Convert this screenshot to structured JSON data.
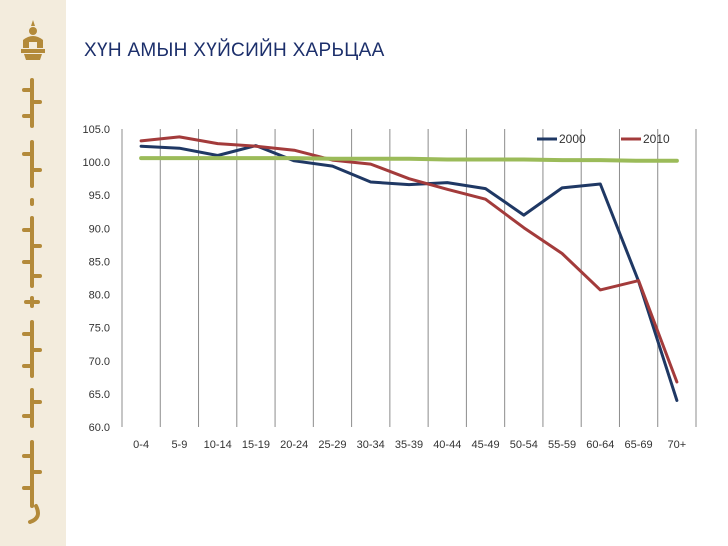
{
  "page": {
    "title": "ХҮН АМЫН ХҮЙСИЙН ХАРЬЦАА",
    "emblem_icon": "mongolia-emblem-icon",
    "sidebar_decoration": "mongolian-script-decoration",
    "colors": {
      "sidebar": "#f3ecdd",
      "gold": "#b38a3a",
      "title": "#1c2f6b"
    }
  },
  "chart_data": {
    "type": "line",
    "title": "",
    "xlabel": "",
    "ylabel": "",
    "ylim": [
      60.0,
      105.0
    ],
    "yticks": [
      "60.0",
      "65.0",
      "70.0",
      "75.0",
      "80.0",
      "85.0",
      "90.0",
      "95.0",
      "100.0",
      "105.0"
    ],
    "categories": [
      "0-4",
      "5-9",
      "10-14",
      "15-19",
      "20-24",
      "25-29",
      "30-34",
      "35-39",
      "40-44",
      "45-49",
      "50-54",
      "55-59",
      "60-64",
      "65-69",
      "70+"
    ],
    "grid": "vertical",
    "legend_position": "top-right",
    "series": [
      {
        "name": "2000",
        "color": "#1f3864",
        "values": [
          102.4,
          102.1,
          101.0,
          102.5,
          100.2,
          99.4,
          97.0,
          96.6,
          96.9,
          96.0,
          92.0,
          96.1,
          96.7,
          82.0,
          64.0
        ]
      },
      {
        "name": "2010",
        "color": "#a33b3b",
        "values": [
          103.2,
          103.8,
          102.8,
          102.4,
          101.8,
          100.3,
          99.7,
          97.5,
          95.9,
          94.4,
          90.1,
          86.2,
          80.7,
          82.1,
          66.8
        ]
      },
      {
        "name": "",
        "color": "#9bbb59",
        "values": [
          100.6,
          100.6,
          100.6,
          100.6,
          100.6,
          100.5,
          100.5,
          100.5,
          100.4,
          100.4,
          100.4,
          100.3,
          100.3,
          100.2,
          100.2
        ]
      }
    ]
  }
}
